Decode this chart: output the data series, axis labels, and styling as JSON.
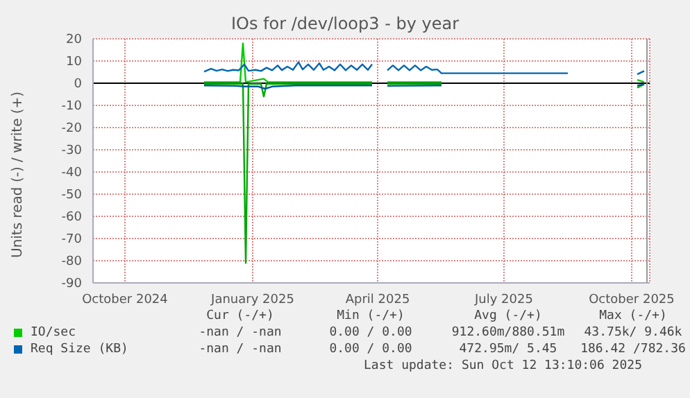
{
  "chart_data": {
    "type": "line",
    "title": "IOs for /dev/loop3 - by year",
    "ylabel": "Units read (-) / write (+)",
    "xlim": [
      "2024-09-08",
      "2025-10-14"
    ],
    "xticks": [
      {
        "value": "2024-10-01",
        "label": "October 2024"
      },
      {
        "value": "2025-01-01",
        "label": "January 2025"
      },
      {
        "value": "2025-04-01",
        "label": "April 2025"
      },
      {
        "value": "2025-07-01",
        "label": "July 2025"
      },
      {
        "value": "2025-10-01",
        "label": "October 2025"
      }
    ],
    "ylim": [
      -90,
      20
    ],
    "yticks": [
      -90,
      -80,
      -70,
      -60,
      -50,
      -40,
      -30,
      -20,
      -10,
      0,
      10,
      20
    ],
    "grid": true,
    "legend": "bottom",
    "marker": "none",
    "line_style": "solid",
    "ref_lines": [
      {
        "axis": "y",
        "value": 0,
        "color": "#000000"
      },
      {
        "axis": "x",
        "value": "2025-10-12",
        "color": "#999999"
      }
    ],
    "series": [
      {
        "name": "IO/sec",
        "color": "#00cc00",
        "x": [
          "2024-11-27",
          "2024-12-23",
          "2024-12-25",
          "2024-12-27",
          "2025-01-09",
          "2025-01-12",
          "2025-03-28",
          "2025-04-03",
          "2025-04-08",
          "2025-05-17",
          "2025-06-01",
          "2025-10-05",
          "2025-10-10"
        ],
        "values": [
          0.5,
          0.5,
          18,
          0.5,
          2,
          0.5,
          0.5,
          null,
          0.5,
          0.5,
          null,
          1.5,
          0.5
        ]
      },
      {
        "color": "#00a800",
        "x": [
          "2024-11-27",
          "2024-12-25",
          "2024-12-27",
          "2024-12-29",
          "2025-01-07",
          "2025-01-09",
          "2025-01-11",
          "2025-03-28",
          "2025-04-03",
          "2025-04-08",
          "2025-05-17",
          "2025-06-01",
          "2025-10-05",
          "2025-10-10"
        ],
        "values": [
          -0.3,
          -0.3,
          -81,
          -0.3,
          -0.3,
          -6,
          -0.3,
          -0.3,
          null,
          -0.3,
          -0.3,
          null,
          -2,
          -0.5
        ]
      },
      {
        "name": "Req Size (KB)",
        "color": "#0066b3",
        "x": [
          "2024-11-27",
          "2024-12-02",
          "2024-12-06",
          "2024-12-10",
          "2024-12-14",
          "2024-12-18",
          "2024-12-22",
          "2024-12-26",
          "2024-12-29",
          "2025-01-03",
          "2025-01-07",
          "2025-01-11",
          "2025-01-15",
          "2025-01-19",
          "2025-01-22",
          "2025-01-26",
          "2025-01-30",
          "2025-02-03",
          "2025-02-06",
          "2025-02-10",
          "2025-02-14",
          "2025-02-18",
          "2025-02-21",
          "2025-02-25",
          "2025-03-01",
          "2025-03-05",
          "2025-03-09",
          "2025-03-13",
          "2025-03-17",
          "2025-03-21",
          "2025-03-25",
          "2025-03-28",
          "2025-04-03",
          "2025-04-08",
          "2025-04-12",
          "2025-04-16",
          "2025-04-20",
          "2025-04-24",
          "2025-04-28",
          "2025-05-02",
          "2025-05-06",
          "2025-05-10",
          "2025-05-14",
          "2025-05-17",
          "2025-08-16",
          "2025-09-01",
          "2025-10-05",
          "2025-10-10"
        ],
        "values": [
          5.2,
          6.5,
          5.6,
          6.2,
          5.5,
          6,
          5.8,
          8.5,
          5.6,
          6,
          5.5,
          7,
          5.8,
          8,
          5.9,
          7.5,
          6,
          9.5,
          6.2,
          8.5,
          6,
          9,
          6,
          7.5,
          5.8,
          8.5,
          5.8,
          8,
          6,
          8.5,
          6,
          8.5,
          null,
          5.8,
          8,
          5.8,
          8,
          5.8,
          8,
          5.8,
          7.5,
          6,
          6.2,
          4.5,
          4.5,
          null,
          4,
          5.5
        ]
      },
      {
        "color": "#0058a0",
        "x": [
          "2024-11-27",
          "2024-12-20",
          "2024-12-26",
          "2025-01-05",
          "2025-01-10",
          "2025-01-15",
          "2025-02-01",
          "2025-03-28",
          "2025-04-03",
          "2025-04-08",
          "2025-05-17",
          "2025-06-01",
          "2025-10-05",
          "2025-10-10"
        ],
        "values": [
          -1,
          -1.2,
          -1.5,
          -1.5,
          -2.5,
          -1.5,
          -1,
          -1,
          null,
          -1.2,
          -1,
          null,
          -1,
          -0.5
        ]
      }
    ],
    "annotations": [
      "Cur (-/+)",
      "Min (-/+)",
      "Avg (-/+)",
      "Max (-/+)",
      "-nan / -nan",
      "0.00 / 0.00",
      "912.60m/880.51m",
      "43.75k/ 9.46k",
      "-nan / -nan",
      "0.00 / 0.00",
      "472.95m/ 5.45",
      "186.42 /782.36",
      "Last update: Sun Oct 12 13:10:06 2025"
    ]
  }
}
